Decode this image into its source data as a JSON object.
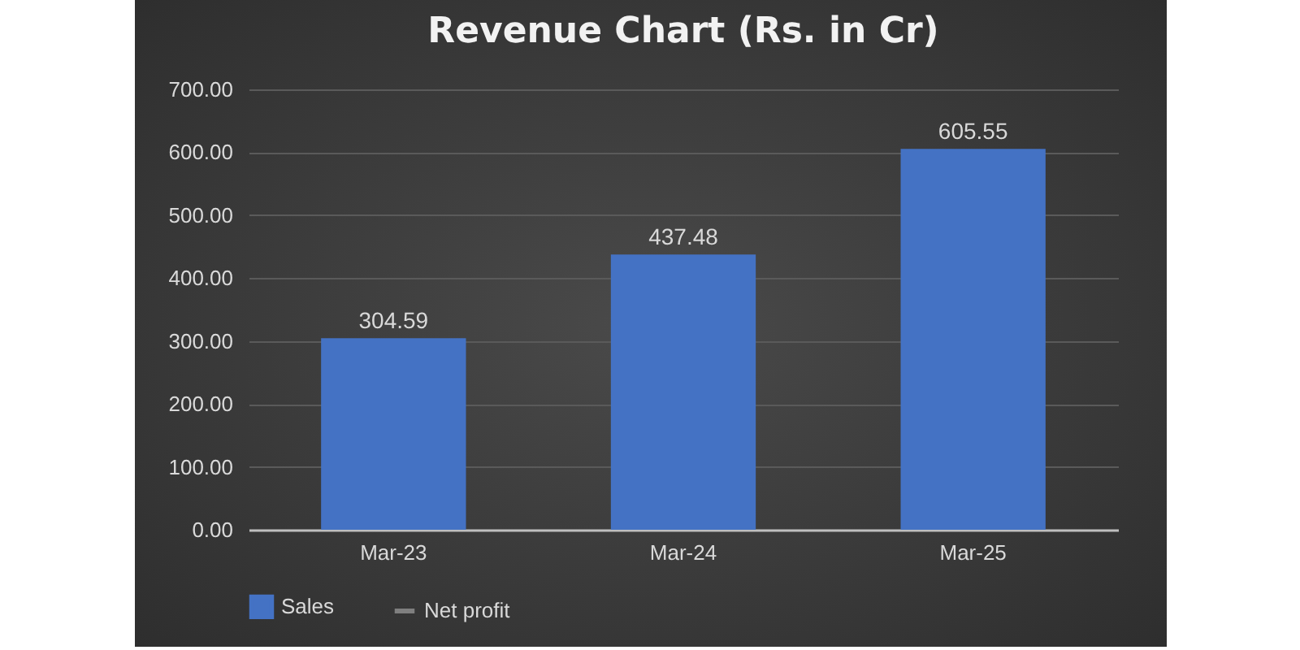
{
  "chart_data": {
    "type": "bar",
    "title": "Revenue Chart (Rs. in Cr)",
    "categories": [
      "Mar-23",
      "Mar-24",
      "Mar-25"
    ],
    "series": [
      {
        "name": "Sales",
        "color": "#4472c4",
        "values": [
          304.59,
          437.48,
          605.55
        ]
      },
      {
        "name": "Net profit",
        "type": "line",
        "color": "#7f7f7f",
        "values": [
          null,
          null,
          null
        ]
      }
    ],
    "ylim": [
      0,
      700
    ],
    "yticks": [
      {
        "value": 0,
        "label": "0.00"
      },
      {
        "value": 100,
        "label": "100.00"
      },
      {
        "value": 200,
        "label": "200.00"
      },
      {
        "value": 300,
        "label": "300.00"
      },
      {
        "value": 400,
        "label": "400.00"
      },
      {
        "value": 500,
        "label": "500.00"
      },
      {
        "value": 600,
        "label": "600.00"
      },
      {
        "value": 700,
        "label": "700.00"
      }
    ],
    "grid": "y",
    "legend": "bottom",
    "data_labels": true
  }
}
